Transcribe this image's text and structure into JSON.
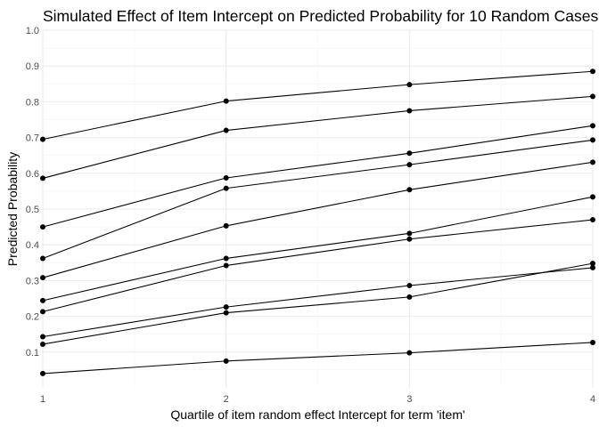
{
  "chart_data": {
    "type": "line",
    "title": "Simulated Effect of Item Intercept on Predicted Probability for 10 Random Cases",
    "xlabel": "Quartile of item random effect Intercept for term 'item'",
    "ylabel": "Predicted Probability",
    "x": [
      1,
      2,
      3,
      4
    ],
    "xlim": [
      1,
      4
    ],
    "ylim": [
      0,
      1
    ],
    "x_ticks": [
      "1",
      "2",
      "3",
      "4"
    ],
    "y_ticks": [
      "0.1",
      "0.2",
      "0.3",
      "0.4",
      "0.5",
      "0.6",
      "0.7",
      "0.8",
      "0.9",
      "1.0"
    ],
    "grid": true,
    "legend": "none",
    "line_color": "#000000",
    "series": [
      {
        "values": [
          0.695,
          0.802,
          0.848,
          0.885
        ]
      },
      {
        "values": [
          0.586,
          0.72,
          0.775,
          0.815
        ]
      },
      {
        "values": [
          0.45,
          0.587,
          0.656,
          0.733
        ]
      },
      {
        "values": [
          0.362,
          0.558,
          0.624,
          0.693
        ]
      },
      {
        "values": [
          0.308,
          0.453,
          0.554,
          0.631
        ]
      },
      {
        "values": [
          0.244,
          0.362,
          0.432,
          0.534
        ]
      },
      {
        "values": [
          0.213,
          0.342,
          0.416,
          0.47
        ]
      },
      {
        "values": [
          0.143,
          0.226,
          0.286,
          0.336
        ]
      },
      {
        "values": [
          0.122,
          0.21,
          0.254,
          0.348
        ]
      },
      {
        "values": [
          0.04,
          0.075,
          0.098,
          0.127
        ]
      }
    ]
  }
}
